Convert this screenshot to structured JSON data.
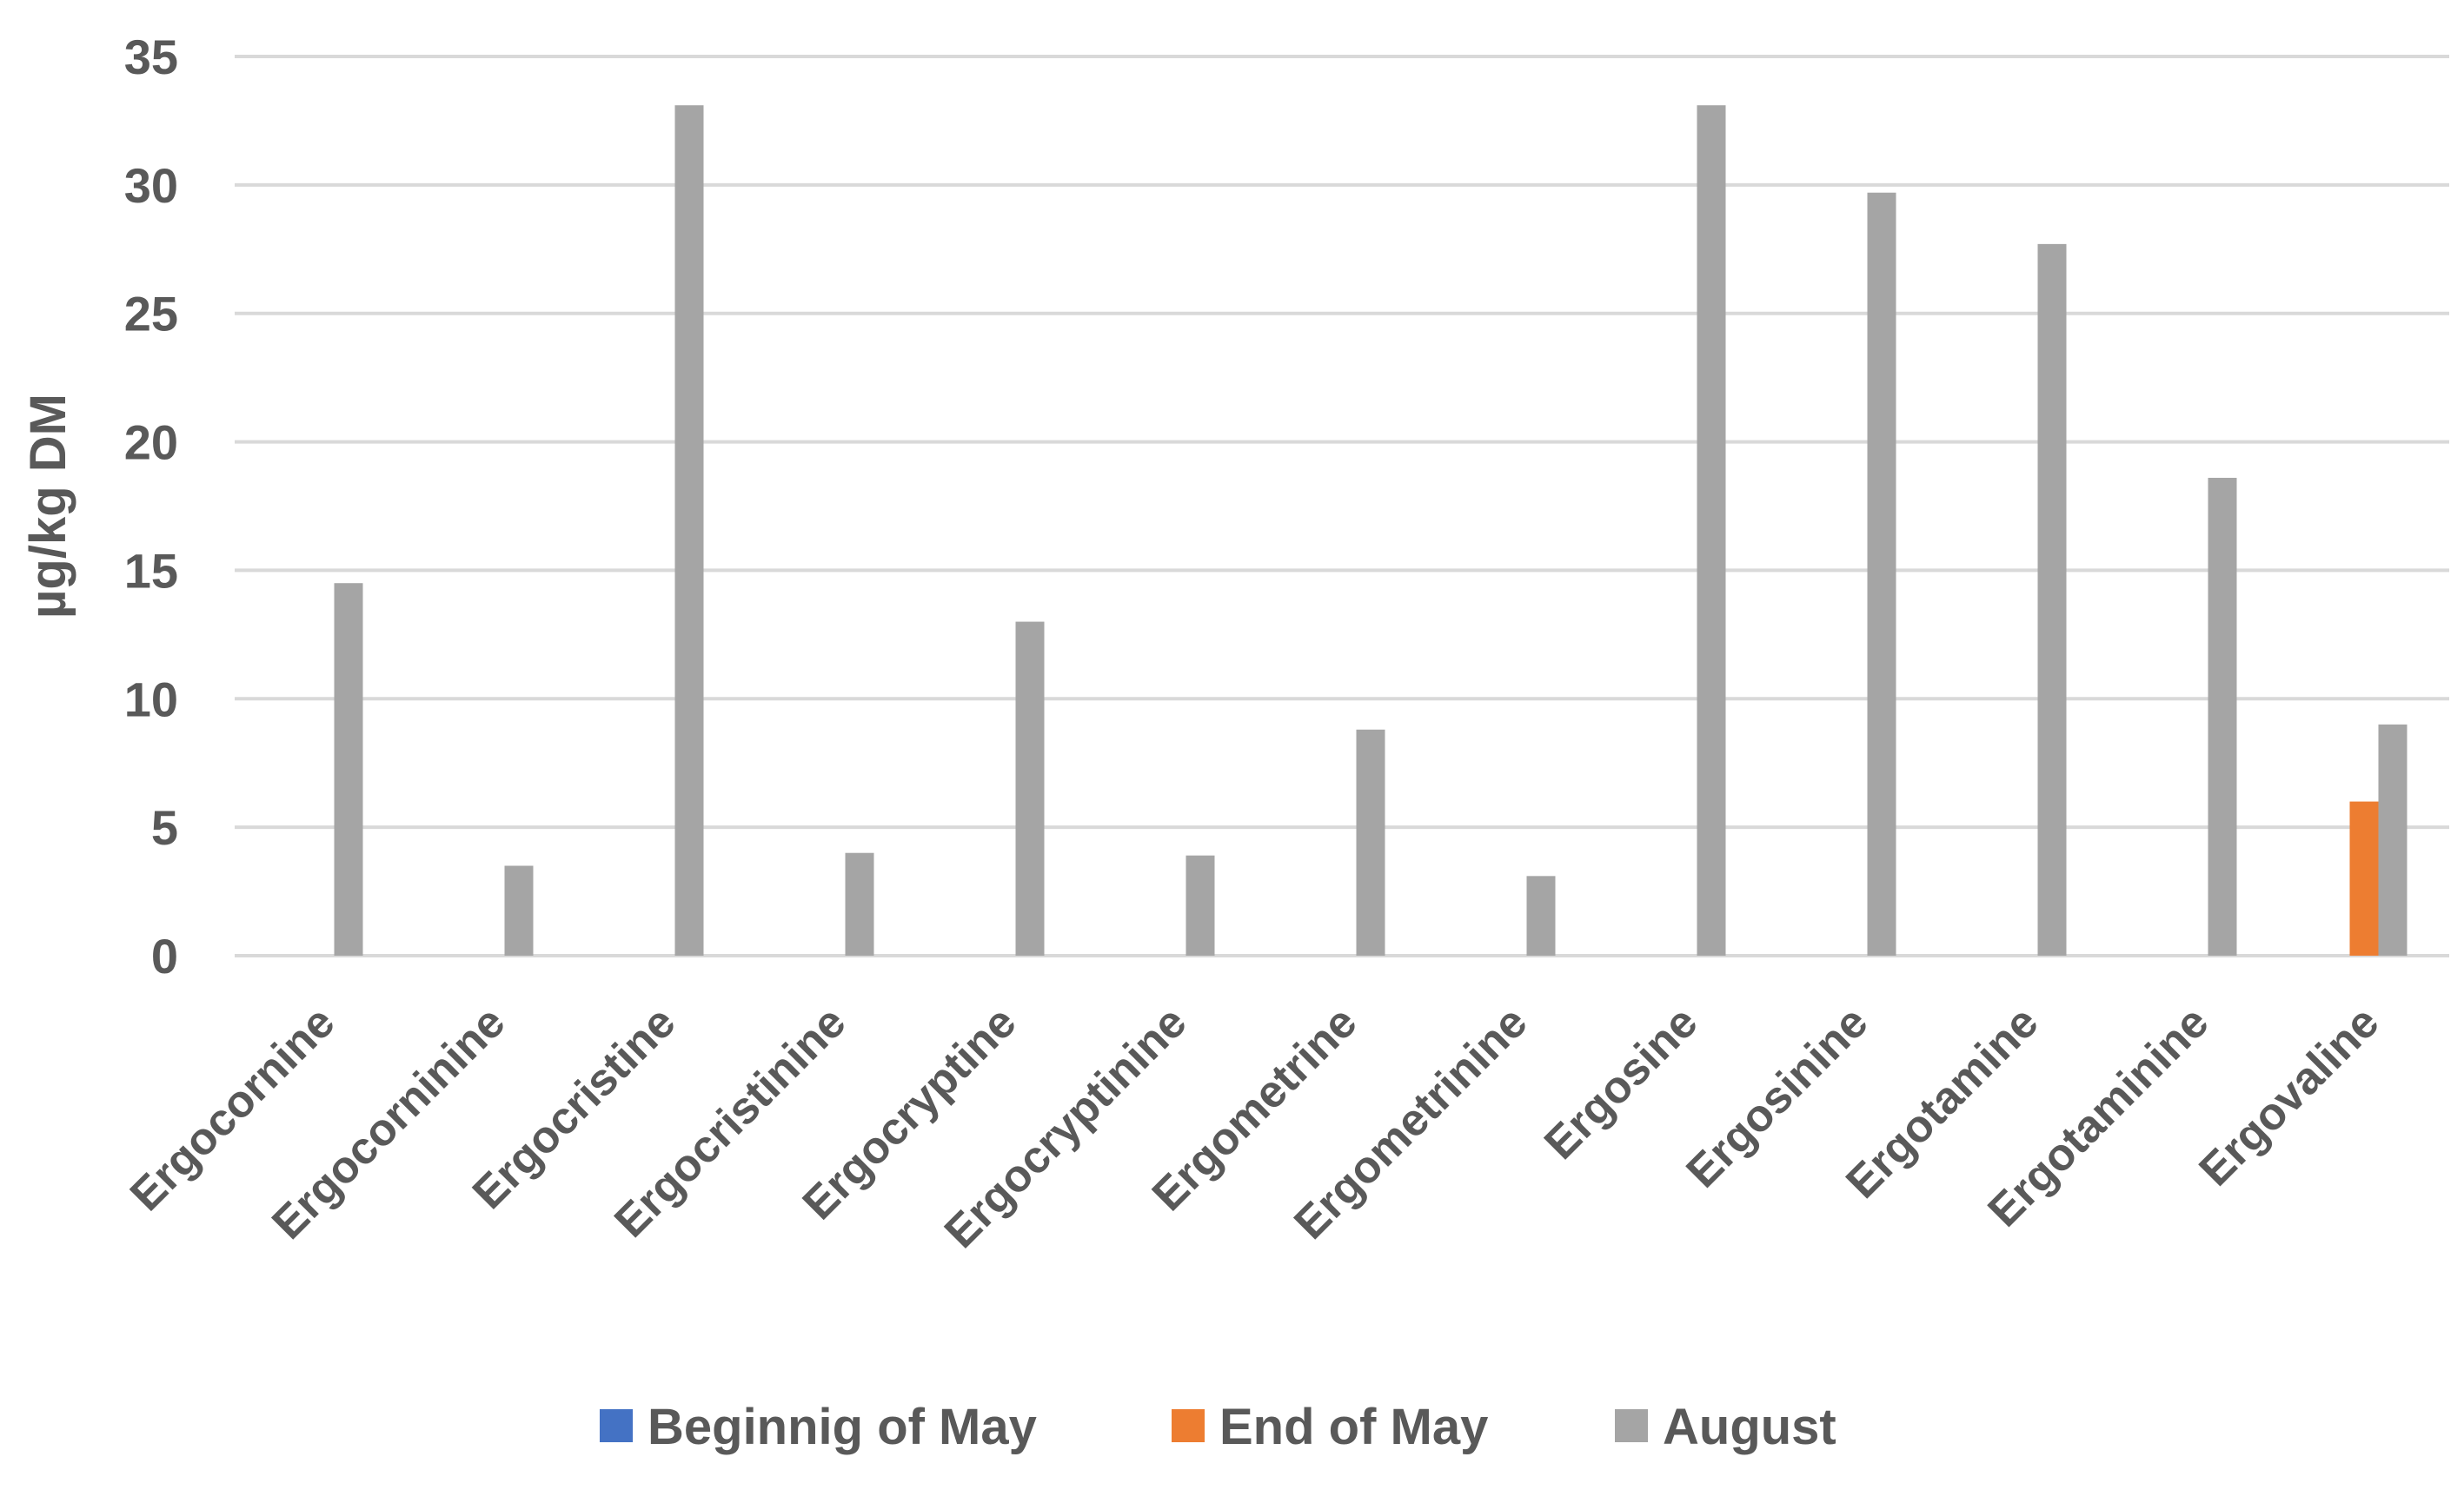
{
  "chart_data": {
    "type": "bar",
    "title": "",
    "xlabel": "",
    "ylabel": "µg/kg DM",
    "ylim": [
      0,
      35
    ],
    "yticks": [
      0,
      5,
      10,
      15,
      20,
      25,
      30,
      35
    ],
    "grid": true,
    "legend_position": "bottom",
    "categories": [
      "Ergocornine",
      "Ergocorninine",
      "Ergocristine",
      "Ergocristinine",
      "Ergocryptine",
      "Ergocryptinine",
      "Ergometrine",
      "Ergometrinine",
      "Ergosine",
      "Ergosinine",
      "Ergotamine",
      "Ergotaminine",
      "Ergovaline"
    ],
    "series": [
      {
        "name": "Beginnig of May",
        "color": "#4472C4",
        "values": [
          0,
          0,
          0,
          0,
          0,
          0,
          0,
          0,
          0,
          0,
          0,
          0,
          0
        ]
      },
      {
        "name": "End of May",
        "color": "#ED7D31",
        "values": [
          0,
          0,
          0,
          0,
          0,
          0,
          0,
          0,
          0,
          0,
          0,
          0,
          6.0
        ]
      },
      {
        "name": "August",
        "color": "#A5A5A5",
        "values": [
          14.5,
          3.5,
          33.1,
          4.0,
          13.0,
          3.9,
          8.8,
          3.1,
          33.1,
          29.7,
          27.7,
          18.6,
          9.0
        ]
      }
    ]
  }
}
